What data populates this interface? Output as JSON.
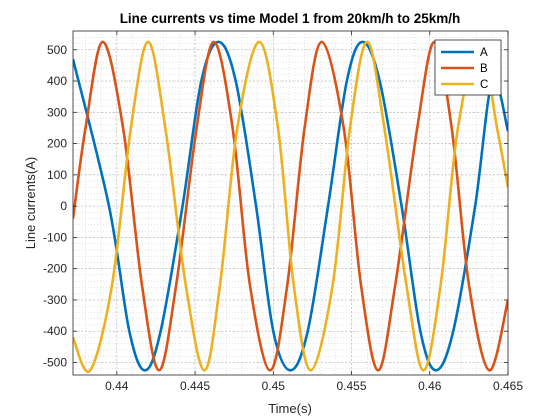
{
  "chart_data": {
    "type": "line",
    "title": "Line currents vs time Model 1 from 20km/h to 25km/h",
    "xlabel": "Time(s)",
    "ylabel": "Line currents(A)",
    "xlim": [
      0.4372,
      0.465
    ],
    "ylim": [
      -540,
      560
    ],
    "xticks": [
      0.44,
      0.445,
      0.45,
      0.455,
      0.46,
      0.465
    ],
    "xtick_labels": [
      "0.44",
      "0.445",
      "0.45",
      "0.455",
      "0.46",
      "0.465"
    ],
    "yticks": [
      -500,
      -400,
      -300,
      -200,
      -100,
      0,
      100,
      200,
      300,
      400,
      500
    ],
    "ytick_labels": [
      "-500",
      "-400",
      "-300",
      "-200",
      "-100",
      "0",
      "100",
      "200",
      "300",
      "400",
      "500"
    ],
    "grid": true,
    "minor_grid": true,
    "legend_position": "top-right",
    "series": [
      {
        "name": "A",
        "color": "#0072BD",
        "x": [
          0.4372,
          0.4395,
          0.4408,
          0.4418,
          0.4428,
          0.4442,
          0.4454,
          0.4465,
          0.4476,
          0.4489,
          0.45,
          0.4511,
          0.4522,
          0.4535,
          0.4547,
          0.4557,
          0.4568,
          0.4582,
          0.4594,
          0.4604,
          0.4615,
          0.4629,
          0.464,
          0.465
        ],
        "y": [
          470,
          0,
          -400,
          -525,
          -400,
          0,
          400,
          525,
          400,
          0,
          -400,
          -525,
          -400,
          0,
          400,
          525,
          400,
          0,
          -400,
          -525,
          -400,
          0,
          400,
          240
        ]
      },
      {
        "name": "B",
        "color": "#D95319",
        "x": [
          0.4372,
          0.438,
          0.4391,
          0.4404,
          0.4416,
          0.4427,
          0.4438,
          0.4451,
          0.4462,
          0.4474,
          0.4485,
          0.4498,
          0.4509,
          0.452,
          0.4531,
          0.4545,
          0.4556,
          0.4567,
          0.4578,
          0.4592,
          0.4603,
          0.4614,
          0.4625,
          0.4638,
          0.465
        ],
        "y": [
          -40,
          250,
          525,
          250,
          -250,
          -525,
          -250,
          250,
          525,
          250,
          -250,
          -525,
          -250,
          250,
          525,
          250,
          -250,
          -525,
          -250,
          250,
          525,
          250,
          -250,
          -525,
          -300
        ]
      },
      {
        "name": "C",
        "color": "#EDB120",
        "x": [
          0.4372,
          0.4383,
          0.4397,
          0.4409,
          0.442,
          0.4431,
          0.4444,
          0.4456,
          0.4466,
          0.4477,
          0.4491,
          0.4503,
          0.4513,
          0.4524,
          0.4538,
          0.4549,
          0.456,
          0.4571,
          0.4585,
          0.4596,
          0.4607,
          0.4618,
          0.4632,
          0.4643,
          0.465
        ],
        "y": [
          -420,
          -525,
          -250,
          250,
          525,
          250,
          -250,
          -525,
          -250,
          250,
          525,
          250,
          -250,
          -525,
          -250,
          250,
          525,
          250,
          -250,
          -525,
          -250,
          250,
          525,
          250,
          60
        ]
      }
    ]
  }
}
